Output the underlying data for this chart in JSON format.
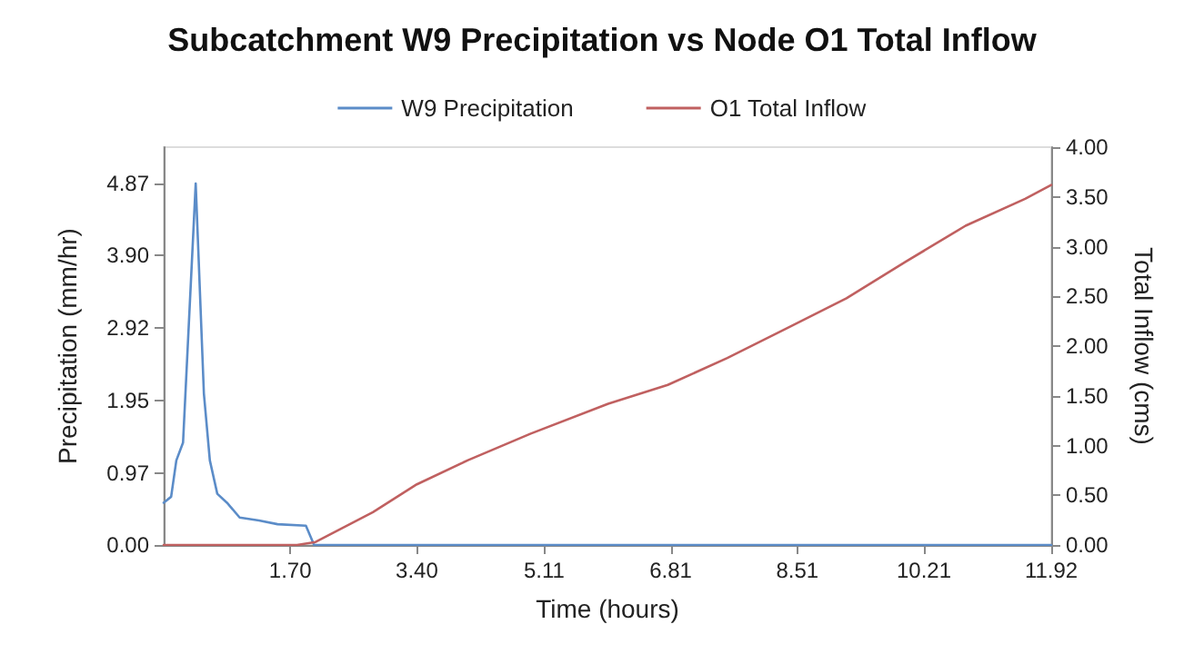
{
  "chart_data": {
    "type": "line",
    "title": "Subcatchment W9 Precipitation vs Node O1 Total Inflow",
    "xlabel": "Time (hours)",
    "ylabel": "Precipitation (mm/hr)",
    "y2label": "Total Inflow (cms)",
    "xlim": [
      0,
      11.92
    ],
    "xticks": [
      {
        "value": 1.7,
        "label": "1.70"
      },
      {
        "value": 3.4,
        "label": "3.40"
      },
      5.11,
      6.81,
      8.51,
      10.21,
      11.92
    ],
    "ylim": [
      0,
      5.36
    ],
    "yticks": [
      {
        "value": 0,
        "label": "0.00"
      },
      0.97,
      1.95,
      2.92,
      {
        "value": 3.9,
        "label": "3.90"
      },
      4.87
    ],
    "y2lim": [
      0,
      4
    ],
    "y2ticks": [
      {
        "value": 0,
        "label": "0.00"
      },
      {
        "value": 0.5,
        "label": "0.50"
      },
      {
        "value": 1,
        "label": "1.00"
      },
      {
        "value": 1.5,
        "label": "1.50"
      },
      {
        "value": 2,
        "label": "2.00"
      },
      {
        "value": 2.5,
        "label": "2.50"
      },
      {
        "value": 3,
        "label": "3.00"
      },
      {
        "value": 3.5,
        "label": "3.50"
      },
      {
        "value": 4,
        "label": "4.00"
      }
    ],
    "grid": false,
    "legend": "top",
    "marker": "none",
    "line_style": "solid",
    "series": [
      {
        "name": "W9 Precipitation",
        "color": "#5b8cc8",
        "x": [
          0,
          0.1,
          0.17,
          0.26,
          0.43,
          0.54,
          0.62,
          0.72,
          0.85,
          1.02,
          1.28,
          1.53,
          1.91,
          2.02,
          11.92
        ],
        "values": [
          0.57,
          0.65,
          1.14,
          1.38,
          4.87,
          2.04,
          1.14,
          0.69,
          0.57,
          0.37,
          0.33,
          0.28,
          0.26,
          0,
          0
        ]
      },
      {
        "name": "O1 Total Inflow",
        "color": "#c06060",
        "axis": "y2",
        "x": [
          0,
          1.79,
          2.04,
          2.81,
          3.4,
          4.08,
          4.93,
          5.97,
          6.77,
          7.57,
          8.37,
          9.17,
          9.97,
          10.77,
          11.57,
          11.92
        ],
        "values": [
          0,
          0,
          0.03,
          0.33,
          0.61,
          0.85,
          1.12,
          1.42,
          1.61,
          1.88,
          2.18,
          2.48,
          2.85,
          3.21,
          3.48,
          3.62
        ]
      }
    ]
  }
}
